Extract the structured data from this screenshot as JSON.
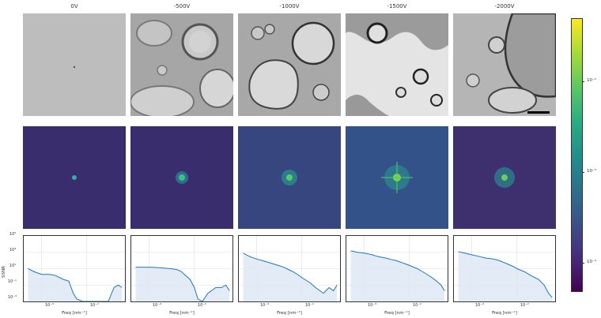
{
  "columns": [
    {
      "voltage": "0V"
    },
    {
      "voltage": "-500V"
    },
    {
      "voltage": "-1000V"
    },
    {
      "voltage": "-1500V"
    },
    {
      "voltage": "-2000V"
    }
  ],
  "colorbar": {
    "ticks": [
      "10⁻²",
      "10⁻³",
      "10⁻⁴"
    ],
    "colormap": "viridis"
  },
  "ssnr": {
    "ylabel": "SSNR",
    "xlabel": "Freq [nm⁻¹]",
    "yticks": [
      "10⁵",
      "10³",
      "10¹",
      "10⁻¹",
      "10⁻³"
    ],
    "xticks": [
      "10⁻³",
      "10⁻²"
    ]
  },
  "chart_data": [
    {
      "type": "line",
      "title": "0V",
      "scale": "log-log",
      "xlabel": "Freq [nm⁻¹]",
      "ylabel": "SSNR",
      "xlim": [
        0.0004,
        0.07
      ],
      "ylim": [
        0.001,
        100000
      ],
      "x": [
        0.0005,
        0.0007,
        0.001,
        0.0015,
        0.002,
        0.003,
        0.004,
        0.005,
        0.006,
        0.008,
        0.01,
        0.015,
        0.02,
        0.03,
        0.04,
        0.05,
        0.06
      ],
      "y": [
        10,
        4,
        2,
        2,
        1.5,
        0.5,
        0.3,
        0.01,
        0.002,
        0.001,
        0.001,
        0.001,
        0.001,
        0.001,
        0.05,
        0.1,
        0.05
      ]
    },
    {
      "type": "line",
      "title": "-500V",
      "scale": "log-log",
      "xlabel": "Freq [nm⁻¹]",
      "ylabel": "SSNR",
      "xlim": [
        0.0004,
        0.07
      ],
      "ylim": [
        0.001,
        100000
      ],
      "x": [
        0.0005,
        0.0007,
        0.001,
        0.0015,
        0.002,
        0.003,
        0.004,
        0.005,
        0.006,
        0.008,
        0.01,
        0.012,
        0.015,
        0.02,
        0.03,
        0.04,
        0.05,
        0.06
      ],
      "y": [
        15,
        15,
        15,
        14,
        12,
        10,
        8,
        5,
        2,
        0.5,
        0.05,
        0.002,
        0.001,
        0.01,
        0.05,
        0.05,
        0.1,
        0.02
      ]
    },
    {
      "type": "line",
      "title": "-1000V",
      "scale": "log-log",
      "xlabel": "Freq [nm⁻¹]",
      "ylabel": "SSNR",
      "xlim": [
        0.0004,
        0.07
      ],
      "ylim": [
        0.001,
        100000
      ],
      "x": [
        0.0005,
        0.0007,
        0.001,
        0.0015,
        0.002,
        0.003,
        0.004,
        0.005,
        0.006,
        0.008,
        0.01,
        0.015,
        0.02,
        0.03,
        0.04,
        0.05,
        0.06
      ],
      "y": [
        800,
        300,
        150,
        80,
        50,
        25,
        15,
        8,
        5,
        2,
        0.8,
        0.2,
        0.05,
        0.01,
        0.05,
        0.02,
        0.1
      ]
    },
    {
      "type": "line",
      "title": "-1500V",
      "scale": "log-log",
      "xlabel": "Freq [nm⁻¹]",
      "ylabel": "SSNR",
      "xlim": [
        0.0004,
        0.07
      ],
      "ylim": [
        0.001,
        100000
      ],
      "x": [
        0.0005,
        0.0007,
        0.001,
        0.0015,
        0.002,
        0.003,
        0.004,
        0.005,
        0.006,
        0.008,
        0.01,
        0.015,
        0.02,
        0.03,
        0.04,
        0.05,
        0.06
      ],
      "y": [
        1500,
        1000,
        800,
        500,
        300,
        200,
        130,
        100,
        70,
        40,
        25,
        10,
        4,
        1,
        0.3,
        0.1,
        0.02
      ]
    },
    {
      "type": "line",
      "title": "-2000V",
      "scale": "log-log",
      "xlabel": "Freq [nm⁻¹]",
      "ylabel": "SSNR",
      "xlim": [
        0.0004,
        0.07
      ],
      "ylim": [
        0.001,
        100000
      ],
      "x": [
        0.0005,
        0.0007,
        0.001,
        0.0015,
        0.002,
        0.003,
        0.004,
        0.005,
        0.006,
        0.008,
        0.01,
        0.015,
        0.02,
        0.03,
        0.04,
        0.05,
        0.06
      ],
      "y": [
        1200,
        800,
        500,
        300,
        200,
        150,
        100,
        60,
        40,
        20,
        10,
        4,
        1.5,
        0.5,
        0.1,
        0.01,
        0.003
      ]
    }
  ]
}
